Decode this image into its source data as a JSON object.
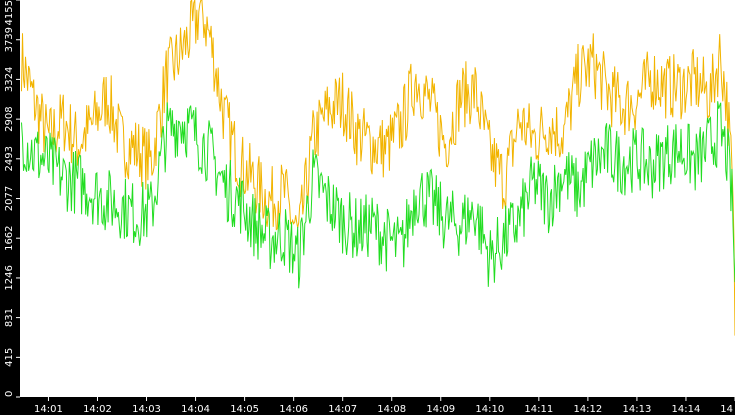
{
  "chart_data": {
    "type": "line",
    "title": "",
    "xlabel": "",
    "ylabel": "",
    "ylim": [
      0,
      4155
    ],
    "grid": false,
    "legend": "none",
    "colors": {
      "background": "#ffffff",
      "frame": "#000000",
      "tick_text": "#ffffff"
    },
    "y_ticks": [
      "0",
      "415",
      "831",
      "1246",
      "1662",
      "2077",
      "2493",
      "2908",
      "3324",
      "3739",
      "4155"
    ],
    "y_tick_values": [
      0,
      415,
      831,
      1246,
      1662,
      2077,
      2493,
      2908,
      3324,
      3739,
      4155
    ],
    "x_ticks": [
      "14:01",
      "14:02",
      "14:03",
      "14:04",
      "14:05",
      "14:06",
      "14:07",
      "14:08",
      "14:09",
      "14:10",
      "14:11",
      "14:12",
      "14:13",
      "14:14",
      "14"
    ],
    "x_tick_minutes": [
      1,
      2,
      3,
      4,
      5,
      6,
      7,
      8,
      9,
      10,
      11,
      12,
      13,
      14,
      15
    ],
    "x_range_minutes": [
      0.42,
      15.0
    ],
    "series": [
      {
        "color": "#f2b400",
        "x": [
          0.45,
          0.7,
          1.0,
          1.3,
          1.6,
          1.9,
          2.2,
          2.5,
          2.8,
          3.1,
          3.4,
          3.7,
          4.0,
          4.1,
          4.3,
          4.6,
          4.9,
          5.2,
          5.5,
          5.8,
          6.1,
          6.4,
          6.7,
          7.0,
          7.3,
          7.6,
          7.9,
          8.2,
          8.5,
          8.8,
          9.1,
          9.4,
          9.7,
          10.0,
          10.3,
          10.6,
          10.9,
          11.2,
          11.5,
          11.8,
          12.1,
          12.4,
          12.7,
          13.0,
          13.3,
          13.6,
          13.9,
          14.2,
          14.5,
          14.7,
          14.85,
          14.95,
          15.0
        ],
        "values": [
          3550,
          3100,
          2700,
          2900,
          2650,
          2850,
          3150,
          2650,
          2600,
          2450,
          3350,
          3600,
          3900,
          4100,
          3750,
          2900,
          2450,
          2250,
          2050,
          2150,
          1650,
          2700,
          3000,
          3100,
          2750,
          2650,
          2600,
          2850,
          3350,
          3050,
          2650,
          3150,
          3200,
          2550,
          2250,
          2900,
          2700,
          2850,
          2750,
          3350,
          3500,
          3200,
          3050,
          3100,
          3350,
          3250,
          3250,
          3300,
          3150,
          3600,
          3000,
          2200,
          800
        ]
      },
      {
        "color": "#22dd22",
        "x": [
          0.45,
          0.7,
          1.0,
          1.3,
          1.6,
          1.9,
          2.2,
          2.5,
          2.8,
          3.1,
          3.4,
          3.7,
          4.0,
          4.3,
          4.6,
          4.9,
          5.2,
          5.5,
          5.8,
          6.1,
          6.4,
          6.7,
          7.0,
          7.3,
          7.6,
          7.9,
          8.2,
          8.5,
          8.8,
          9.1,
          9.4,
          9.7,
          10.0,
          10.3,
          10.6,
          10.9,
          11.2,
          11.5,
          11.8,
          12.1,
          12.4,
          12.7,
          13.0,
          13.3,
          13.6,
          13.9,
          14.2,
          14.5,
          14.7,
          14.85,
          14.95,
          15.0
        ],
        "values": [
          2750,
          2550,
          2450,
          2300,
          2250,
          2150,
          2050,
          2000,
          1900,
          1950,
          2750,
          2900,
          2750,
          2550,
          2200,
          2050,
          1800,
          1650,
          1700,
          1450,
          2300,
          2050,
          1850,
          1750,
          1800,
          1650,
          1550,
          2150,
          2050,
          1850,
          1800,
          1950,
          1450,
          1650,
          1850,
          2250,
          2050,
          2350,
          2150,
          2450,
          2550,
          2450,
          2500,
          2400,
          2550,
          2600,
          2450,
          2650,
          2800,
          2500,
          2000,
          1100
        ]
      }
    ]
  }
}
